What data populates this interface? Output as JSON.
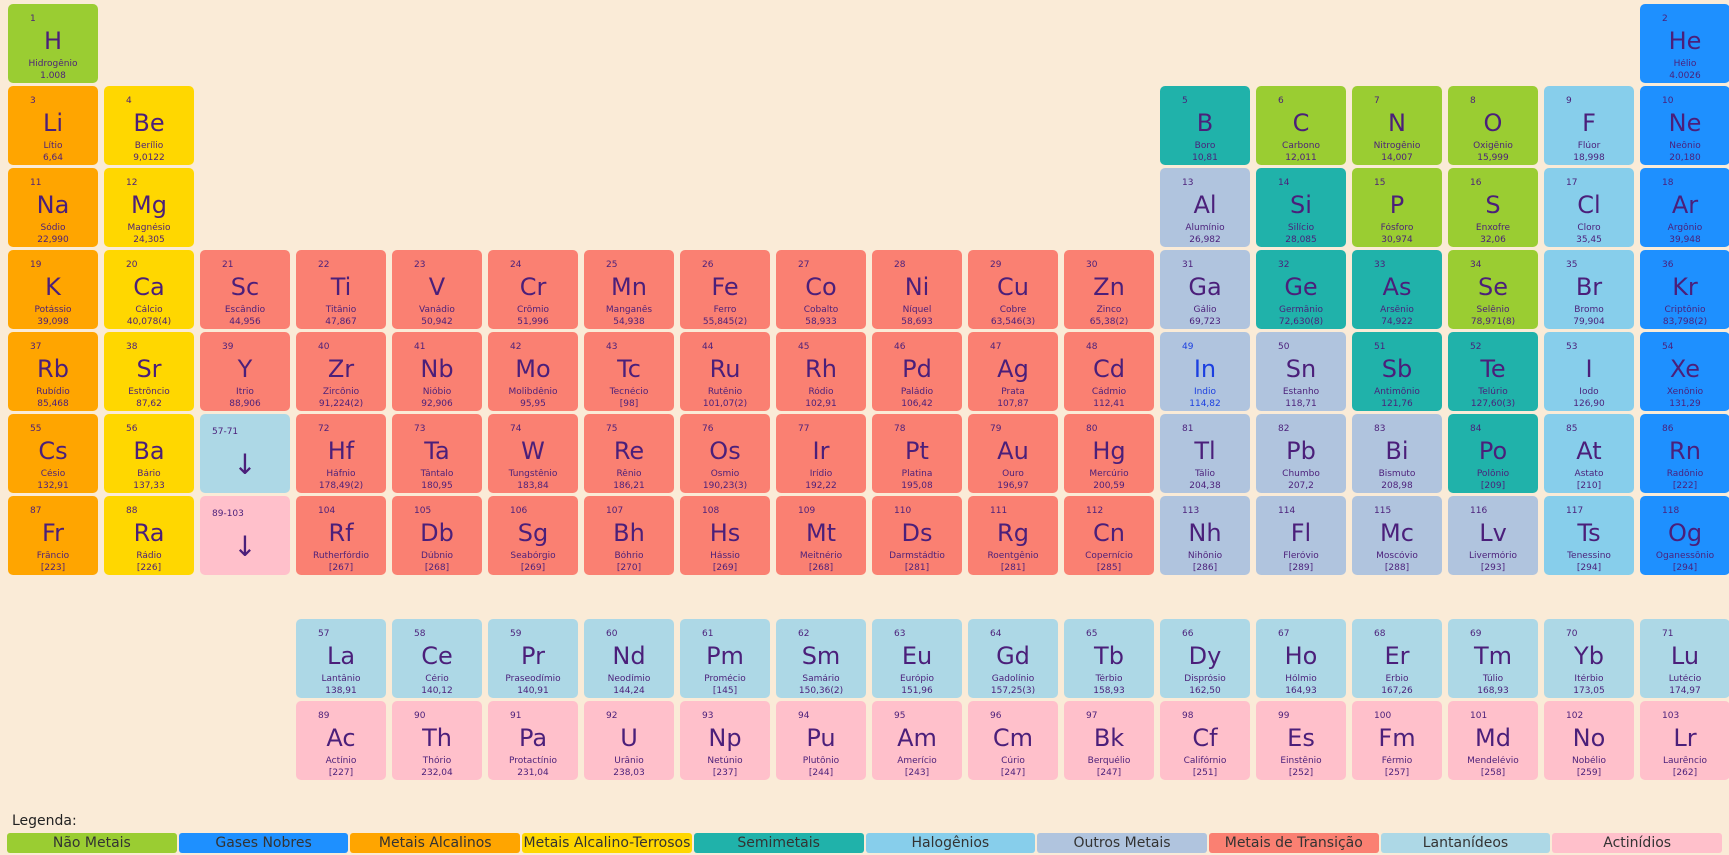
{
  "colors": {
    "nonmetal": "#9acd32",
    "noble": "#1e90ff",
    "alkali": "#ffa500",
    "alkaline": "#ffd700",
    "metalloid": "#20b2aa",
    "halogen": "#87ceeb",
    "other": "#b0c4de",
    "transition": "#fa8072",
    "lanthanide": "#add8e6",
    "actinide": "#ffc0cb"
  },
  "elements": [
    {
      "n": "1",
      "s": "H",
      "name": "Hidrogênio",
      "m": "1.008",
      "c": "nonmetal",
      "r": 1,
      "col": 1
    },
    {
      "n": "2",
      "s": "He",
      "name": "Hélio",
      "m": "4.0026",
      "c": "noble",
      "r": 1,
      "col": 18
    },
    {
      "n": "3",
      "s": "Li",
      "name": "Lítio",
      "m": "6,64",
      "c": "alkali",
      "r": 2,
      "col": 1
    },
    {
      "n": "4",
      "s": "Be",
      "name": "Berílio",
      "m": "9,0122",
      "c": "alkaline",
      "r": 2,
      "col": 2
    },
    {
      "n": "5",
      "s": "B",
      "name": "Boro",
      "m": "10,81",
      "c": "metalloid",
      "r": 2,
      "col": 13
    },
    {
      "n": "6",
      "s": "C",
      "name": "Carbono",
      "m": "12,011",
      "c": "nonmetal",
      "r": 2,
      "col": 14
    },
    {
      "n": "7",
      "s": "N",
      "name": "Nitrogênio",
      "m": "14,007",
      "c": "nonmetal",
      "r": 2,
      "col": 15
    },
    {
      "n": "8",
      "s": "O",
      "name": "Oxigênio",
      "m": "15,999",
      "c": "nonmetal",
      "r": 2,
      "col": 16
    },
    {
      "n": "9",
      "s": "F",
      "name": "Flúor",
      "m": "18,998",
      "c": "halogen",
      "r": 2,
      "col": 17
    },
    {
      "n": "10",
      "s": "Ne",
      "name": "Neônio",
      "m": "20,180",
      "c": "noble",
      "r": 2,
      "col": 18
    },
    {
      "n": "11",
      "s": "Na",
      "name": "Sódio",
      "m": "22,990",
      "c": "alkali",
      "r": 3,
      "col": 1
    },
    {
      "n": "12",
      "s": "Mg",
      "name": "Magnésio",
      "m": "24,305",
      "c": "alkaline",
      "r": 3,
      "col": 2
    },
    {
      "n": "13",
      "s": "Al",
      "name": "Alumínio",
      "m": "26,982",
      "c": "other",
      "r": 3,
      "col": 13
    },
    {
      "n": "14",
      "s": "Si",
      "name": "Silício",
      "m": "28,085",
      "c": "metalloid",
      "r": 3,
      "col": 14
    },
    {
      "n": "15",
      "s": "P",
      "name": "Fósforo",
      "m": "30,974",
      "c": "nonmetal",
      "r": 3,
      "col": 15
    },
    {
      "n": "16",
      "s": "S",
      "name": "Enxofre",
      "m": "32,06",
      "c": "nonmetal",
      "r": 3,
      "col": 16
    },
    {
      "n": "17",
      "s": "Cl",
      "name": "Cloro",
      "m": "35,45",
      "c": "halogen",
      "r": 3,
      "col": 17
    },
    {
      "n": "18",
      "s": "Ar",
      "name": "Argônio",
      "m": "39,948",
      "c": "noble",
      "r": 3,
      "col": 18
    },
    {
      "n": "19",
      "s": "K",
      "name": "Potássio",
      "m": "39,098",
      "c": "alkali",
      "r": 4,
      "col": 1
    },
    {
      "n": "20",
      "s": "Ca",
      "name": "Cálcio",
      "m": "40,078(4)",
      "c": "alkaline",
      "r": 4,
      "col": 2
    },
    {
      "n": "21",
      "s": "Sc",
      "name": "Escândio",
      "m": "44,956",
      "c": "transition",
      "r": 4,
      "col": 3
    },
    {
      "n": "22",
      "s": "Ti",
      "name": "Titânio",
      "m": "47,867",
      "c": "transition",
      "r": 4,
      "col": 4
    },
    {
      "n": "23",
      "s": "V",
      "name": "Vanádio",
      "m": "50,942",
      "c": "transition",
      "r": 4,
      "col": 5
    },
    {
      "n": "24",
      "s": "Cr",
      "name": "Crômio",
      "m": "51,996",
      "c": "transition",
      "r": 4,
      "col": 6
    },
    {
      "n": "25",
      "s": "Mn",
      "name": "Manganês",
      "m": "54,938",
      "c": "transition",
      "r": 4,
      "col": 7
    },
    {
      "n": "26",
      "s": "Fe",
      "name": "Ferro",
      "m": "55,845(2)",
      "c": "transition",
      "r": 4,
      "col": 8
    },
    {
      "n": "27",
      "s": "Co",
      "name": "Cobalto",
      "m": "58,933",
      "c": "transition",
      "r": 4,
      "col": 9
    },
    {
      "n": "28",
      "s": "Ni",
      "name": "Níquel",
      "m": "58,693",
      "c": "transition",
      "r": 4,
      "col": 10
    },
    {
      "n": "29",
      "s": "Cu",
      "name": "Cobre",
      "m": "63,546(3)",
      "c": "transition",
      "r": 4,
      "col": 11
    },
    {
      "n": "30",
      "s": "Zn",
      "name": "Zinco",
      "m": "65,38(2)",
      "c": "transition",
      "r": 4,
      "col": 12
    },
    {
      "n": "31",
      "s": "Ga",
      "name": "Gálio",
      "m": "69,723",
      "c": "other",
      "r": 4,
      "col": 13
    },
    {
      "n": "32",
      "s": "Ge",
      "name": "Germânio",
      "m": "72,630(8)",
      "c": "metalloid",
      "r": 4,
      "col": 14
    },
    {
      "n": "33",
      "s": "As",
      "name": "Arsênio",
      "m": "74,922",
      "c": "metalloid",
      "r": 4,
      "col": 15
    },
    {
      "n": "34",
      "s": "Se",
      "name": "Selênio",
      "m": "78,971(8)",
      "c": "nonmetal",
      "r": 4,
      "col": 16
    },
    {
      "n": "35",
      "s": "Br",
      "name": "Bromo",
      "m": "79,904",
      "c": "halogen",
      "r": 4,
      "col": 17
    },
    {
      "n": "36",
      "s": "Kr",
      "name": "Criptônio",
      "m": "83,798(2)",
      "c": "noble",
      "r": 4,
      "col": 18
    },
    {
      "n": "37",
      "s": "Rb",
      "name": "Rubídio",
      "m": "85,468",
      "c": "alkali",
      "r": 5,
      "col": 1
    },
    {
      "n": "38",
      "s": "Sr",
      "name": "Estrôncio",
      "m": "87,62",
      "c": "alkaline",
      "r": 5,
      "col": 2
    },
    {
      "n": "39",
      "s": "Y",
      "name": "Ítrio",
      "m": "88,906",
      "c": "transition",
      "r": 5,
      "col": 3
    },
    {
      "n": "40",
      "s": "Zr",
      "name": "Zircônio",
      "m": "91,224(2)",
      "c": "transition",
      "r": 5,
      "col": 4
    },
    {
      "n": "41",
      "s": "Nb",
      "name": "Nióbio",
      "m": "92,906",
      "c": "transition",
      "r": 5,
      "col": 5
    },
    {
      "n": "42",
      "s": "Mo",
      "name": "Molibdênio",
      "m": "95,95",
      "c": "transition",
      "r": 5,
      "col": 6
    },
    {
      "n": "43",
      "s": "Tc",
      "name": "Tecnécio",
      "m": "[98]",
      "c": "transition",
      "r": 5,
      "col": 7
    },
    {
      "n": "44",
      "s": "Ru",
      "name": "Rutênio",
      "m": "101,07(2)",
      "c": "transition",
      "r": 5,
      "col": 8
    },
    {
      "n": "45",
      "s": "Rh",
      "name": "Ródio",
      "m": "102,91",
      "c": "transition",
      "r": 5,
      "col": 9
    },
    {
      "n": "46",
      "s": "Pd",
      "name": "Paládio",
      "m": "106,42",
      "c": "transition",
      "r": 5,
      "col": 10
    },
    {
      "n": "47",
      "s": "Ag",
      "name": "Prata",
      "m": "107,87",
      "c": "transition",
      "r": 5,
      "col": 11
    },
    {
      "n": "48",
      "s": "Cd",
      "name": "Cádmio",
      "m": "112,41",
      "c": "transition",
      "r": 5,
      "col": 12
    },
    {
      "n": "49",
      "s": "In",
      "name": "Índio",
      "m": "114,82",
      "c": "other",
      "r": 5,
      "col": 13,
      "special": true
    },
    {
      "n": "50",
      "s": "Sn",
      "name": "Estanho",
      "m": "118,71",
      "c": "other",
      "r": 5,
      "col": 14
    },
    {
      "n": "51",
      "s": "Sb",
      "name": "Antimônio",
      "m": "121,76",
      "c": "metalloid",
      "r": 5,
      "col": 15
    },
    {
      "n": "52",
      "s": "Te",
      "name": "Telúrio",
      "m": "127,60(3)",
      "c": "metalloid",
      "r": 5,
      "col": 16
    },
    {
      "n": "53",
      "s": "I",
      "name": "Iodo",
      "m": "126,90",
      "c": "halogen",
      "r": 5,
      "col": 17
    },
    {
      "n": "54",
      "s": "Xe",
      "name": "Xenônio",
      "m": "131,29",
      "c": "noble",
      "r": 5,
      "col": 18
    },
    {
      "n": "55",
      "s": "Cs",
      "name": "Césio",
      "m": "132,91",
      "c": "alkali",
      "r": 6,
      "col": 1
    },
    {
      "n": "56",
      "s": "Ba",
      "name": "Bário",
      "m": "137,33",
      "c": "alkaline",
      "r": 6,
      "col": 2
    },
    {
      "n": "72",
      "s": "Hf",
      "name": "Háfnio",
      "m": "178,49(2)",
      "c": "transition",
      "r": 6,
      "col": 4
    },
    {
      "n": "73",
      "s": "Ta",
      "name": "Tântalo",
      "m": "180,95",
      "c": "transition",
      "r": 6,
      "col": 5
    },
    {
      "n": "74",
      "s": "W",
      "name": "Tungstênio",
      "m": "183,84",
      "c": "transition",
      "r": 6,
      "col": 6
    },
    {
      "n": "75",
      "s": "Re",
      "name": "Rênio",
      "m": "186,21",
      "c": "transition",
      "r": 6,
      "col": 7
    },
    {
      "n": "76",
      "s": "Os",
      "name": "Ósmio",
      "m": "190,23(3)",
      "c": "transition",
      "r": 6,
      "col": 8
    },
    {
      "n": "77",
      "s": "Ir",
      "name": "Irídio",
      "m": "192,22",
      "c": "transition",
      "r": 6,
      "col": 9
    },
    {
      "n": "78",
      "s": "Pt",
      "name": "Platina",
      "m": "195,08",
      "c": "transition",
      "r": 6,
      "col": 10
    },
    {
      "n": "79",
      "s": "Au",
      "name": "Ouro",
      "m": "196,97",
      "c": "transition",
      "r": 6,
      "col": 11
    },
    {
      "n": "80",
      "s": "Hg",
      "name": "Mercúrio",
      "m": "200,59",
      "c": "transition",
      "r": 6,
      "col": 12
    },
    {
      "n": "81",
      "s": "Tl",
      "name": "Tálio",
      "m": "204,38",
      "c": "other",
      "r": 6,
      "col": 13
    },
    {
      "n": "82",
      "s": "Pb",
      "name": "Chumbo",
      "m": "207,2",
      "c": "other",
      "r": 6,
      "col": 14
    },
    {
      "n": "83",
      "s": "Bi",
      "name": "Bismuto",
      "m": "208,98",
      "c": "other",
      "r": 6,
      "col": 15
    },
    {
      "n": "84",
      "s": "Po",
      "name": "Polônio",
      "m": "[209]",
      "c": "metalloid",
      "r": 6,
      "col": 16
    },
    {
      "n": "85",
      "s": "At",
      "name": "Astato",
      "m": "[210]",
      "c": "halogen",
      "r": 6,
      "col": 17
    },
    {
      "n": "86",
      "s": "Rn",
      "name": "Radônio",
      "m": "[222]",
      "c": "noble",
      "r": 6,
      "col": 18
    },
    {
      "n": "87",
      "s": "Fr",
      "name": "Frâncio",
      "m": "[223]",
      "c": "alkali",
      "r": 7,
      "col": 1
    },
    {
      "n": "88",
      "s": "Ra",
      "name": "Rádio",
      "m": "[226]",
      "c": "alkaline",
      "r": 7,
      "col": 2
    },
    {
      "n": "104",
      "s": "Rf",
      "name": "Rutherfórdio",
      "m": "[267]",
      "c": "transition",
      "r": 7,
      "col": 4
    },
    {
      "n": "105",
      "s": "Db",
      "name": "Dúbnio",
      "m": "[268]",
      "c": "transition",
      "r": 7,
      "col": 5
    },
    {
      "n": "106",
      "s": "Sg",
      "name": "Seabórgio",
      "m": "[269]",
      "c": "transition",
      "r": 7,
      "col": 6
    },
    {
      "n": "107",
      "s": "Bh",
      "name": "Bóhrio",
      "m": "[270]",
      "c": "transition",
      "r": 7,
      "col": 7
    },
    {
      "n": "108",
      "s": "Hs",
      "name": "Hássio",
      "m": "[269]",
      "c": "transition",
      "r": 7,
      "col": 8
    },
    {
      "n": "109",
      "s": "Mt",
      "name": "Meitnério",
      "m": "[268]",
      "c": "transition",
      "r": 7,
      "col": 9
    },
    {
      "n": "110",
      "s": "Ds",
      "name": "Darmstádtio",
      "m": "[281]",
      "c": "transition",
      "r": 7,
      "col": 10
    },
    {
      "n": "111",
      "s": "Rg",
      "name": "Roentgênio",
      "m": "[281]",
      "c": "transition",
      "r": 7,
      "col": 11
    },
    {
      "n": "112",
      "s": "Cn",
      "name": "Copernício",
      "m": "[285]",
      "c": "transition",
      "r": 7,
      "col": 12
    },
    {
      "n": "113",
      "s": "Nh",
      "name": "Nihônio",
      "m": "[286]",
      "c": "other",
      "r": 7,
      "col": 13
    },
    {
      "n": "114",
      "s": "Fl",
      "name": "Fleróvio",
      "m": "[289]",
      "c": "other",
      "r": 7,
      "col": 14
    },
    {
      "n": "115",
      "s": "Mc",
      "name": "Moscóvio",
      "m": "[288]",
      "c": "other",
      "r": 7,
      "col": 15
    },
    {
      "n": "116",
      "s": "Lv",
      "name": "Livermório",
      "m": "[293]",
      "c": "other",
      "r": 7,
      "col": 16
    },
    {
      "n": "117",
      "s": "Ts",
      "name": "Tenessino",
      "m": "[294]",
      "c": "halogen",
      "r": 7,
      "col": 17
    },
    {
      "n": "118",
      "s": "Og",
      "name": "Oganessônio",
      "m": "[294]",
      "c": "noble",
      "r": 7,
      "col": 18
    },
    {
      "n": "57",
      "s": "La",
      "name": "Lantânio",
      "m": "138,91",
      "c": "lanthanide",
      "r": 9,
      "col": 4
    },
    {
      "n": "58",
      "s": "Ce",
      "name": "Cério",
      "m": "140,12",
      "c": "lanthanide",
      "r": 9,
      "col": 5
    },
    {
      "n": "59",
      "s": "Pr",
      "name": "Praseodímio",
      "m": "140,91",
      "c": "lanthanide",
      "r": 9,
      "col": 6
    },
    {
      "n": "60",
      "s": "Nd",
      "name": "Neodímio",
      "m": "144,24",
      "c": "lanthanide",
      "r": 9,
      "col": 7
    },
    {
      "n": "61",
      "s": "Pm",
      "name": "Promécio",
      "m": "[145]",
      "c": "lanthanide",
      "r": 9,
      "col": 8
    },
    {
      "n": "62",
      "s": "Sm",
      "name": "Samário",
      "m": "150,36(2)",
      "c": "lanthanide",
      "r": 9,
      "col": 9
    },
    {
      "n": "63",
      "s": "Eu",
      "name": "Európio",
      "m": "151,96",
      "c": "lanthanide",
      "r": 9,
      "col": 10
    },
    {
      "n": "64",
      "s": "Gd",
      "name": "Gadolínio",
      "m": "157,25(3)",
      "c": "lanthanide",
      "r": 9,
      "col": 11
    },
    {
      "n": "65",
      "s": "Tb",
      "name": "Térbio",
      "m": "158,93",
      "c": "lanthanide",
      "r": 9,
      "col": 12
    },
    {
      "n": "66",
      "s": "Dy",
      "name": "Disprósio",
      "m": "162,50",
      "c": "lanthanide",
      "r": 9,
      "col": 13
    },
    {
      "n": "67",
      "s": "Ho",
      "name": "Hólmio",
      "m": "164,93",
      "c": "lanthanide",
      "r": 9,
      "col": 14
    },
    {
      "n": "68",
      "s": "Er",
      "name": "Érbio",
      "m": "167,26",
      "c": "lanthanide",
      "r": 9,
      "col": 15
    },
    {
      "n": "69",
      "s": "Tm",
      "name": "Túlio",
      "m": "168,93",
      "c": "lanthanide",
      "r": 9,
      "col": 16
    },
    {
      "n": "70",
      "s": "Yb",
      "name": "Itérbio",
      "m": "173,05",
      "c": "lanthanide",
      "r": 9,
      "col": 17
    },
    {
      "n": "71",
      "s": "Lu",
      "name": "Lutécio",
      "m": "174,97",
      "c": "lanthanide",
      "r": 9,
      "col": 18
    },
    {
      "n": "89",
      "s": "Ac",
      "name": "Actínio",
      "m": "[227]",
      "c": "actinide",
      "r": 10,
      "col": 4
    },
    {
      "n": "90",
      "s": "Th",
      "name": "Thório",
      "m": "232,04",
      "c": "actinide",
      "r": 10,
      "col": 5
    },
    {
      "n": "91",
      "s": "Pa",
      "name": "Protactínio",
      "m": "231,04",
      "c": "actinide",
      "r": 10,
      "col": 6
    },
    {
      "n": "92",
      "s": "U",
      "name": "Urânio",
      "m": "238,03",
      "c": "actinide",
      "r": 10,
      "col": 7
    },
    {
      "n": "93",
      "s": "Np",
      "name": "Netúnio",
      "m": "[237]",
      "c": "actinide",
      "r": 10,
      "col": 8
    },
    {
      "n": "94",
      "s": "Pu",
      "name": "Plutônio",
      "m": "[244]",
      "c": "actinide",
      "r": 10,
      "col": 9
    },
    {
      "n": "95",
      "s": "Am",
      "name": "Amerício",
      "m": "[243]",
      "c": "actinide",
      "r": 10,
      "col": 10
    },
    {
      "n": "96",
      "s": "Cm",
      "name": "Cúrio",
      "m": "[247]",
      "c": "actinide",
      "r": 10,
      "col": 11
    },
    {
      "n": "97",
      "s": "Bk",
      "name": "Berquélio",
      "m": "[247]",
      "c": "actinide",
      "r": 10,
      "col": 12
    },
    {
      "n": "98",
      "s": "Cf",
      "name": "Califórnio",
      "m": "[251]",
      "c": "actinide",
      "r": 10,
      "col": 13
    },
    {
      "n": "99",
      "s": "Es",
      "name": "Einstênio",
      "m": "[252]",
      "c": "actinide",
      "r": 10,
      "col": 14
    },
    {
      "n": "100",
      "s": "Fm",
      "name": "Férmio",
      "m": "[257]",
      "c": "actinide",
      "r": 10,
      "col": 15
    },
    {
      "n": "101",
      "s": "Md",
      "name": "Mendelévio",
      "m": "[258]",
      "c": "actinide",
      "r": 10,
      "col": 16
    },
    {
      "n": "102",
      "s": "No",
      "name": "Nobélio",
      "m": "[259]",
      "c": "actinide",
      "r": 10,
      "col": 17
    },
    {
      "n": "103",
      "s": "Lr",
      "name": "Laurêncio",
      "m": "[262]",
      "c": "actinide",
      "r": 10,
      "col": 18
    }
  ],
  "placeholders": [
    {
      "range": "57-71",
      "arrow": "↓",
      "c": "lanthanide",
      "r": 6,
      "col": 3
    },
    {
      "range": "89-103",
      "arrow": "↓",
      "c": "actinide",
      "r": 7,
      "col": 3
    }
  ],
  "legend": {
    "title": "Legenda:",
    "items": [
      {
        "label": "Não Metais",
        "c": "nonmetal"
      },
      {
        "label": "Gases Nobres",
        "c": "noble"
      },
      {
        "label": "Metais Alcalinos",
        "c": "alkali"
      },
      {
        "label": "Metais Alcalino-Terrosos",
        "c": "alkaline"
      },
      {
        "label": "Semimetais",
        "c": "metalloid"
      },
      {
        "label": "Halogênios",
        "c": "halogen"
      },
      {
        "label": "Outros Metais",
        "c": "other"
      },
      {
        "label": "Metais de Transição",
        "c": "transition"
      },
      {
        "label": "Lantanídeos",
        "c": "lanthanide"
      },
      {
        "label": "Actinídios",
        "c": "actinide"
      }
    ]
  }
}
